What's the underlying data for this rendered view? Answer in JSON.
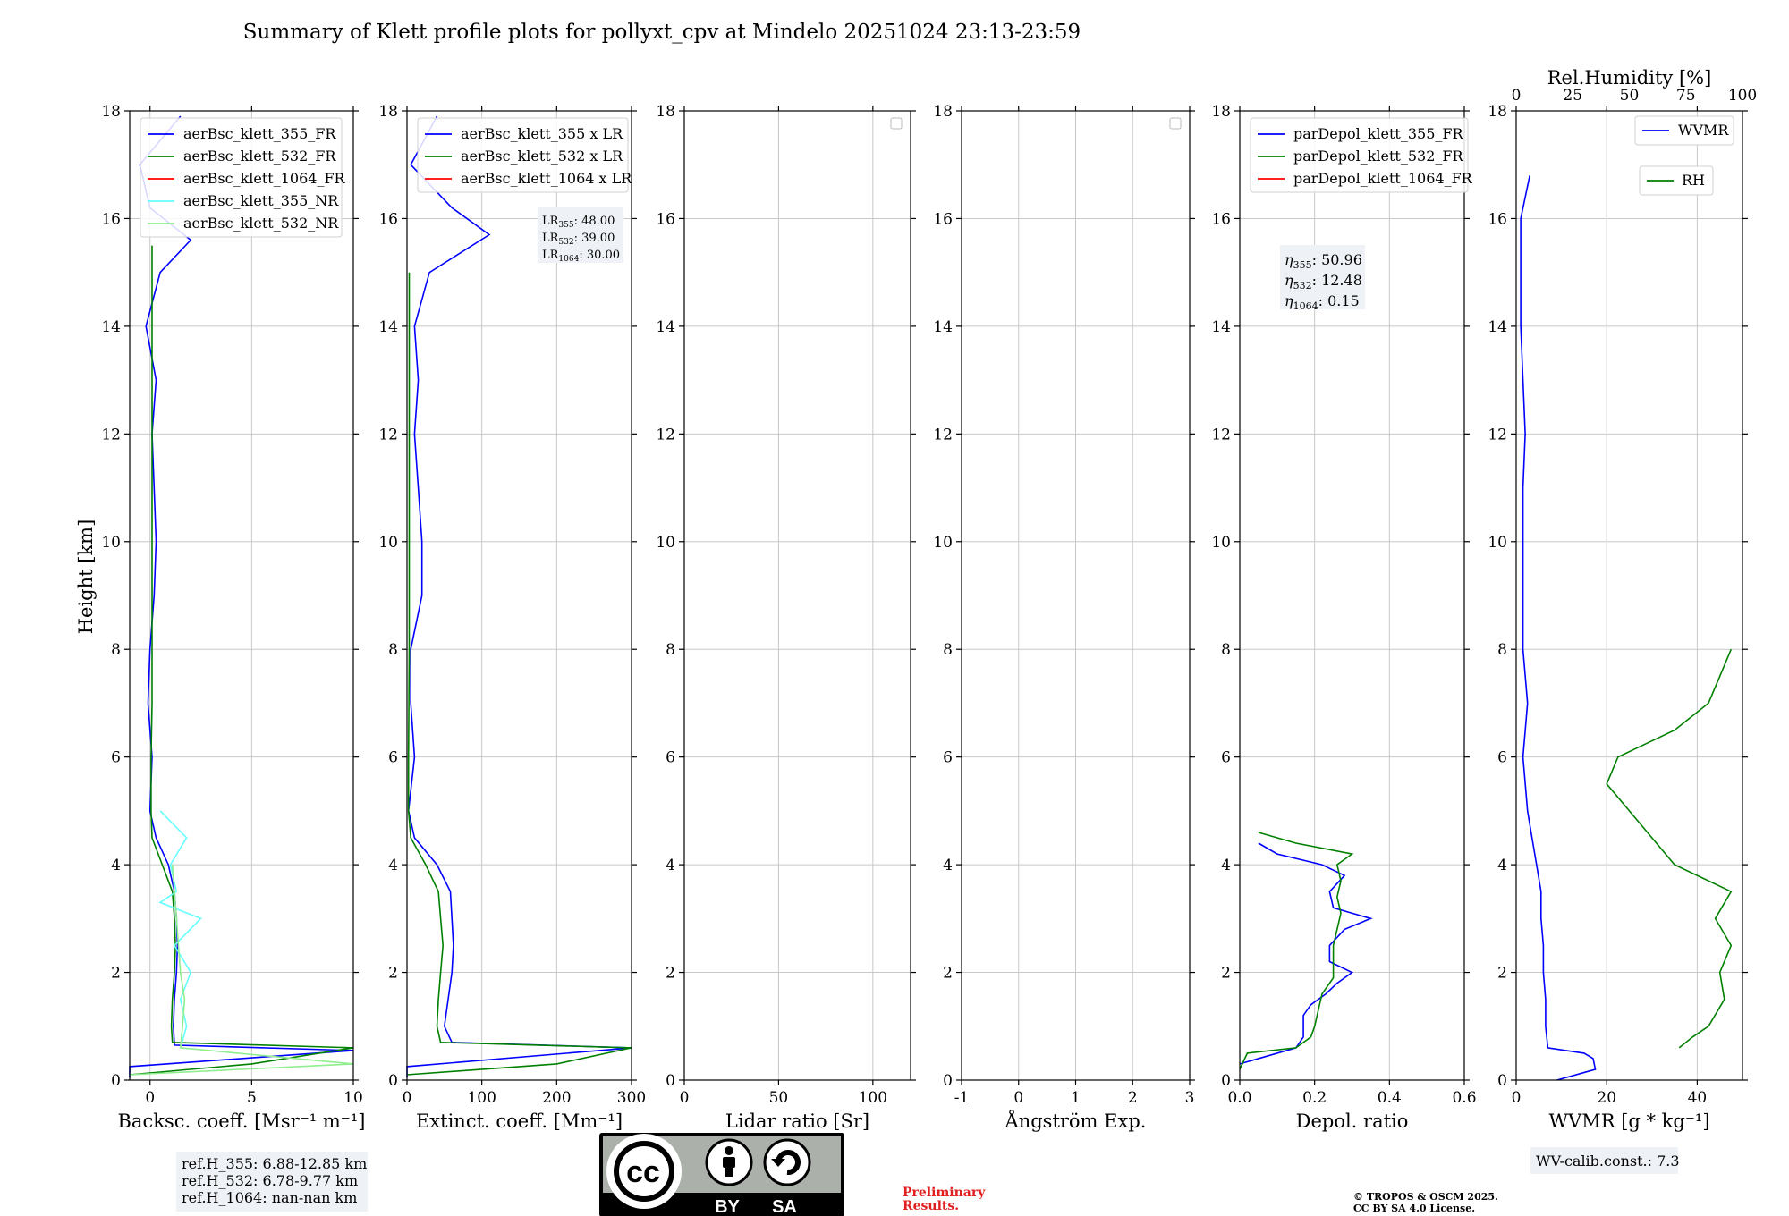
{
  "title": "Summary of Klett profile plots for pollyxt_cpv at Mindelo 20251024 23:13-23:59",
  "y_axis_label": "Height [km]",
  "panel1": {
    "xlabel": "Backsc. coeff. [Msr⁻¹ m⁻¹]",
    "legend": [
      "aerBsc_klett_355_FR",
      "aerBsc_klett_532_FR",
      "aerBsc_klett_1064_FR",
      "aerBsc_klett_355_NR",
      "aerBsc_klett_532_NR"
    ],
    "ref_lines": [
      "ref.H_355: 6.88-12.85 km",
      "ref.H_532: 6.78-9.77 km",
      "ref.H_1064: nan-nan km"
    ]
  },
  "panel2": {
    "xlabel": "Extinct. coeff. [Mm⁻¹]",
    "legend": [
      "aerBsc_klett_355 x LR",
      "aerBsc_klett_532 x LR",
      "aerBsc_klett_1064 x LR"
    ],
    "lr_lines": [
      {
        "name": "LR",
        "sub": "355",
        "value": ": 48.00"
      },
      {
        "name": "LR",
        "sub": "532",
        "value": ": 39.00"
      },
      {
        "name": "LR",
        "sub": "1064",
        "value": ": 30.00"
      }
    ]
  },
  "panel3": {
    "xlabel": "Lidar ratio [Sr]"
  },
  "panel4": {
    "xlabel": "Ångström Exp."
  },
  "panel5": {
    "xlabel": "Depol. ratio",
    "legend": [
      "parDepol_klett_355_FR",
      "parDepol_klett_532_FR",
      "parDepol_klett_1064_FR"
    ],
    "eta_lines": [
      {
        "sub": "355",
        "value": ": 50.96"
      },
      {
        "sub": "532",
        "value": ": 12.48"
      },
      {
        "sub": "1064",
        "value": ": 0.15"
      }
    ]
  },
  "panel6": {
    "xlabel": "WVMR [g * kg⁻¹]",
    "top_label": "Rel.Humidity [%]",
    "legend_wvmr": "WVMR",
    "legend_rh": "RH",
    "calib": "WV-calib.const.: 7.3"
  },
  "footer": {
    "preliminary": [
      "Preliminary",
      "Results."
    ],
    "copyright": [
      "© TROPOS & OSCM 2025.",
      "CC BY SA 4.0 License."
    ],
    "cc_by": "BY",
    "cc_sa": "SA",
    "cc_logo": "cc"
  },
  "chart_data": [
    {
      "type": "line",
      "title": "Summary of Klett profile plots for pollyxt_cpv at Mindelo 20251024 23:13-23:59",
      "xlabel": "Backsc. coeff. [Msr⁻¹ m⁻¹]",
      "ylabel": "Height [km]",
      "xlim": [
        -1,
        10
      ],
      "ylim": [
        0,
        18
      ],
      "xticks": [
        0,
        5,
        10
      ],
      "yticks": [
        0,
        2,
        4,
        6,
        8,
        10,
        12,
        14,
        16,
        18
      ],
      "grid": true,
      "legend_position": "upper left",
      "series": [
        {
          "name": "aerBsc_klett_355_FR",
          "color": "#0000ff",
          "y": [
            0.05,
            0.25,
            0.55,
            0.65,
            1.0,
            1.5,
            2.0,
            2.5,
            3.0,
            3.5,
            4.0,
            4.5,
            5.0,
            6.0,
            7.0,
            8.0,
            9.0,
            10.0,
            11.0,
            12.0,
            13.0,
            14.0,
            15.0,
            15.6,
            16.2,
            17.0,
            17.9
          ],
          "x": [
            -1.0,
            -1.0,
            10.0,
            1.2,
            1.15,
            1.2,
            1.3,
            1.35,
            1.3,
            1.2,
            0.9,
            0.3,
            0.0,
            0.1,
            -0.1,
            0.0,
            0.2,
            0.3,
            0.2,
            0.1,
            0.3,
            -0.2,
            0.5,
            2.0,
            0.0,
            -0.5,
            1.5
          ]
        },
        {
          "name": "aerBsc_klett_532_FR",
          "color": "#008000",
          "y": [
            0.1,
            0.3,
            0.6,
            0.7,
            1.0,
            1.5,
            2.0,
            2.5,
            3.0,
            3.5,
            4.0,
            4.5,
            5.0,
            6.0,
            7.0,
            8.0,
            9.0,
            10.0,
            11.0,
            12.0,
            13.0,
            14.0,
            15.0,
            15.5
          ],
          "x": [
            -1.0,
            5.0,
            10.0,
            1.1,
            1.05,
            1.1,
            1.2,
            1.25,
            1.2,
            1.1,
            0.6,
            0.1,
            0.05,
            0.05,
            0.1,
            0.1,
            0.1,
            0.1,
            0.1,
            0.1,
            0.1,
            0.1,
            0.1,
            0.1
          ]
        },
        {
          "name": "aerBsc_klett_1064_FR",
          "color": "#ff0000",
          "y": [],
          "x": []
        },
        {
          "name": "aerBsc_klett_355_NR",
          "color": "#66ffff",
          "y": [
            0.6,
            1.0,
            1.5,
            2.0,
            2.5,
            3.0,
            3.3,
            3.5,
            4.0,
            4.5,
            5.0
          ],
          "x": [
            1.5,
            1.8,
            1.5,
            2.0,
            1.2,
            2.5,
            0.5,
            1.3,
            1.0,
            1.8,
            0.5
          ]
        },
        {
          "name": "aerBsc_klett_532_NR",
          "color": "#90ee90",
          "y": [
            0.1,
            0.3,
            0.6,
            1.0,
            1.5,
            2.0,
            2.5,
            3.0,
            3.5,
            4.0
          ],
          "x": [
            -1.0,
            10.0,
            1.5,
            1.6,
            1.7,
            1.5,
            1.4,
            1.3,
            1.2,
            1.1
          ]
        }
      ]
    },
    {
      "type": "line",
      "xlabel": "Extinct. coeff. [Mm⁻¹]",
      "ylabel": "Height [km]",
      "xlim": [
        0,
        300
      ],
      "ylim": [
        0,
        18
      ],
      "xticks": [
        0,
        100,
        200,
        300
      ],
      "yticks": [
        0,
        2,
        4,
        6,
        8,
        10,
        12,
        14,
        16,
        18
      ],
      "grid": true,
      "legend_position": "upper left",
      "series": [
        {
          "name": "aerBsc_klett_355 x LR",
          "color": "#0000ff",
          "y": [
            0.05,
            0.25,
            0.6,
            0.7,
            1.0,
            1.5,
            2.0,
            2.5,
            3.0,
            3.5,
            4.0,
            4.5,
            5.0,
            6.0,
            7.0,
            8.0,
            9.0,
            10.0,
            11.0,
            12.0,
            13.0,
            14.0,
            15.0,
            15.7,
            16.2,
            17.0,
            17.9
          ],
          "x": [
            0,
            0,
            300,
            60,
            50,
            55,
            60,
            62,
            60,
            58,
            40,
            10,
            2,
            10,
            5,
            5,
            20,
            20,
            15,
            10,
            15,
            10,
            30,
            110,
            60,
            5,
            40
          ]
        },
        {
          "name": "aerBsc_klett_532 x LR",
          "color": "#008000",
          "y": [
            0.1,
            0.3,
            0.6,
            0.7,
            1.0,
            1.5,
            2.0,
            2.5,
            3.0,
            3.5,
            4.0,
            4.5,
            5.0,
            6.0,
            8.0,
            10.0,
            12.0,
            14.0,
            15.0
          ],
          "x": [
            0,
            200,
            300,
            45,
            40,
            42,
            45,
            48,
            45,
            42,
            25,
            5,
            2,
            2,
            3,
            3,
            3,
            3,
            3
          ]
        },
        {
          "name": "aerBsc_klett_1064 x LR",
          "color": "#ff0000",
          "y": [],
          "x": []
        }
      ]
    },
    {
      "type": "line",
      "xlabel": "Lidar ratio [Sr]",
      "xlim": [
        0,
        120
      ],
      "ylim": [
        0,
        18
      ],
      "xticks": [
        0,
        50,
        100
      ],
      "yticks": [
        0,
        2,
        4,
        6,
        8,
        10,
        12,
        14,
        16,
        18
      ],
      "grid": true,
      "series": []
    },
    {
      "type": "line",
      "xlabel": "Ångström Exp.",
      "xlim": [
        -1,
        3
      ],
      "ylim": [
        0,
        18
      ],
      "xticks": [
        -1,
        0,
        1,
        2,
        3
      ],
      "yticks": [
        0,
        2,
        4,
        6,
        8,
        10,
        12,
        14,
        16,
        18
      ],
      "grid": true,
      "series": []
    },
    {
      "type": "line",
      "xlabel": "Depol. ratio",
      "xlim": [
        0,
        0.6
      ],
      "ylim": [
        0,
        18
      ],
      "xticks": [
        0.0,
        0.2,
        0.4,
        0.6
      ],
      "yticks": [
        0,
        2,
        4,
        6,
        8,
        10,
        12,
        14,
        16,
        18
      ],
      "grid": true,
      "legend_position": "upper left",
      "series": [
        {
          "name": "parDepol_klett_355_FR",
          "color": "#0000ff",
          "y": [
            0.3,
            0.6,
            0.8,
            1.0,
            1.2,
            1.4,
            1.6,
            1.8,
            2.0,
            2.2,
            2.5,
            2.8,
            3.0,
            3.2,
            3.5,
            3.8,
            4.0,
            4.2,
            4.4
          ],
          "x": [
            0.0,
            0.15,
            0.17,
            0.17,
            0.17,
            0.19,
            0.23,
            0.26,
            0.3,
            0.24,
            0.24,
            0.28,
            0.35,
            0.25,
            0.24,
            0.28,
            0.22,
            0.1,
            0.05
          ]
        },
        {
          "name": "parDepol_klett_532_FR",
          "color": "#008000",
          "y": [
            0.2,
            0.5,
            0.6,
            0.8,
            1.0,
            1.3,
            1.6,
            1.9,
            2.2,
            2.5,
            2.8,
            3.1,
            3.4,
            3.7,
            4.0,
            4.2,
            4.4,
            4.6
          ],
          "x": [
            0.0,
            0.02,
            0.15,
            0.19,
            0.2,
            0.21,
            0.22,
            0.25,
            0.25,
            0.25,
            0.26,
            0.27,
            0.26,
            0.27,
            0.26,
            0.3,
            0.15,
            0.05
          ]
        },
        {
          "name": "parDepol_klett_1064_FR",
          "color": "#ff0000",
          "y": [],
          "x": []
        }
      ]
    },
    {
      "type": "line",
      "xlabel": "WVMR [g * kg⁻¹]",
      "top_xlabel": "Rel.Humidity [%]",
      "xlim": [
        0,
        50
      ],
      "top_xlim": [
        0,
        100
      ],
      "ylim": [
        0,
        18
      ],
      "xticks": [
        0,
        20,
        40
      ],
      "top_xticks": [
        0,
        25,
        50,
        75,
        100
      ],
      "yticks": [
        0,
        2,
        4,
        6,
        8,
        10,
        12,
        14,
        16,
        18
      ],
      "grid": true,
      "series": [
        {
          "name": "WVMR",
          "color": "#0000ff",
          "y": [
            0.0,
            0.2,
            0.4,
            0.5,
            0.6,
            1.0,
            1.5,
            2.0,
            2.5,
            3.0,
            3.5,
            4.0,
            4.5,
            5.0,
            6.0,
            7.0,
            8.0,
            9.0,
            10.0,
            11.0,
            12.0,
            13.0,
            14.0,
            15.0,
            16.0,
            16.8
          ],
          "x": [
            9.0,
            17.5,
            17.0,
            15.0,
            7.0,
            6.5,
            6.5,
            6.0,
            6.0,
            5.5,
            5.5,
            4.5,
            3.5,
            2.5,
            1.5,
            2.5,
            1.5,
            1.5,
            1.5,
            1.5,
            2.0,
            1.5,
            1.0,
            1.0,
            1.0,
            3.0
          ]
        },
        {
          "name": "RH",
          "color": "#008000",
          "y": [
            0.6,
            0.8,
            1.0,
            1.5,
            2.0,
            2.5,
            3.0,
            3.5,
            4.0,
            4.5,
            5.0,
            5.5,
            6.0,
            6.5,
            7.0,
            7.5,
            8.0
          ],
          "rh_percent": [
            72,
            78,
            85,
            92,
            90,
            95,
            88,
            95,
            70,
            60,
            50,
            40,
            45,
            70,
            85,
            90,
            95
          ]
        }
      ]
    }
  ]
}
